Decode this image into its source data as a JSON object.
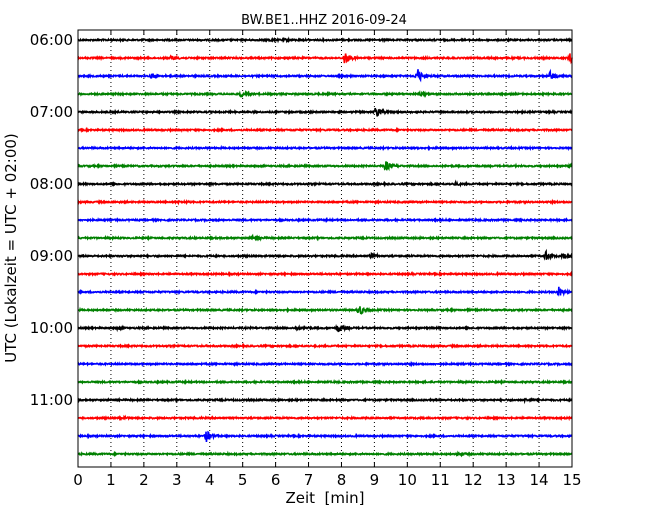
{
  "chart_data": {
    "type": "line",
    "title": "BW.BE1..HHZ 2016-09-24",
    "xlabel": "Zeit  [min]",
    "ylabel": "UTC (Lokalzeit = UTC + 02:00)",
    "xlim": [
      0,
      15
    ],
    "x_ticks": [
      "0",
      "1",
      "2",
      "3",
      "4",
      "5",
      "6",
      "7",
      "8",
      "9",
      "10",
      "11",
      "12",
      "13",
      "14",
      "15"
    ],
    "y_tick_labels": [
      "06:00",
      "07:00",
      "08:00",
      "09:00",
      "10:00",
      "11:00"
    ],
    "grid": "vertical-dotted",
    "series_colors": [
      "#000000",
      "#ff0000",
      "#0000ff",
      "#008000"
    ],
    "traces": [
      {
        "start": "06:00",
        "color": "#000000",
        "events": [
          [
            5.8,
            0.8
          ],
          [
            6.3,
            0.6
          ]
        ]
      },
      {
        "start": "06:15",
        "color": "#ff0000",
        "events": [
          [
            2.85,
            2.2
          ],
          [
            8.1,
            6.0
          ],
          [
            14.95,
            5.0
          ]
        ]
      },
      {
        "start": "06:30",
        "color": "#0000ff",
        "events": [
          [
            2.25,
            2.5
          ],
          [
            10.3,
            8.0
          ],
          [
            14.35,
            4.5
          ]
        ]
      },
      {
        "start": "06:45",
        "color": "#008000",
        "events": [
          [
            4.95,
            2.8
          ],
          [
            10.4,
            1.5
          ]
        ]
      },
      {
        "start": "07:00",
        "color": "#000000",
        "events": [
          [
            9.05,
            5.5
          ]
        ]
      },
      {
        "start": "07:15",
        "color": "#ff0000",
        "events": []
      },
      {
        "start": "07:30",
        "color": "#0000ff",
        "events": []
      },
      {
        "start": "07:45",
        "color": "#008000",
        "events": [
          [
            9.35,
            5.0
          ],
          [
            14.9,
            1.5
          ]
        ]
      },
      {
        "start": "08:00",
        "color": "#000000",
        "events": [
          [
            11.45,
            1.2
          ]
        ]
      },
      {
        "start": "08:15",
        "color": "#ff0000",
        "events": [
          [
            3.1,
            1.0
          ]
        ]
      },
      {
        "start": "08:30",
        "color": "#0000ff",
        "events": []
      },
      {
        "start": "08:45",
        "color": "#008000",
        "events": [
          [
            5.3,
            2.5
          ]
        ]
      },
      {
        "start": "09:00",
        "color": "#000000",
        "events": [
          [
            8.9,
            2.2
          ],
          [
            14.2,
            4.5
          ],
          [
            14.75,
            2.8
          ]
        ]
      },
      {
        "start": "09:15",
        "color": "#ff0000",
        "events": []
      },
      {
        "start": "09:30",
        "color": "#0000ff",
        "events": [
          [
            14.6,
            5.0
          ]
        ]
      },
      {
        "start": "09:45",
        "color": "#008000",
        "events": [
          [
            8.55,
            5.0
          ]
        ]
      },
      {
        "start": "10:00",
        "color": "#000000",
        "events": [
          [
            6.65,
            2.0
          ],
          [
            7.9,
            4.0
          ],
          [
            1.2,
            0.8
          ]
        ]
      },
      {
        "start": "10:15",
        "color": "#ff0000",
        "events": []
      },
      {
        "start": "10:30",
        "color": "#0000ff",
        "events": []
      },
      {
        "start": "10:45",
        "color": "#008000",
        "events": []
      },
      {
        "start": "11:00",
        "color": "#000000",
        "events": [
          [
            13.6,
            1.2
          ]
        ]
      },
      {
        "start": "11:15",
        "color": "#ff0000",
        "events": [
          [
            1.3,
            1.5
          ]
        ]
      },
      {
        "start": "11:30",
        "color": "#0000ff",
        "events": [
          [
            3.9,
            5.5
          ]
        ]
      },
      {
        "start": "11:45",
        "color": "#008000",
        "events": [
          [
            11.55,
            1.8
          ]
        ]
      }
    ]
  }
}
